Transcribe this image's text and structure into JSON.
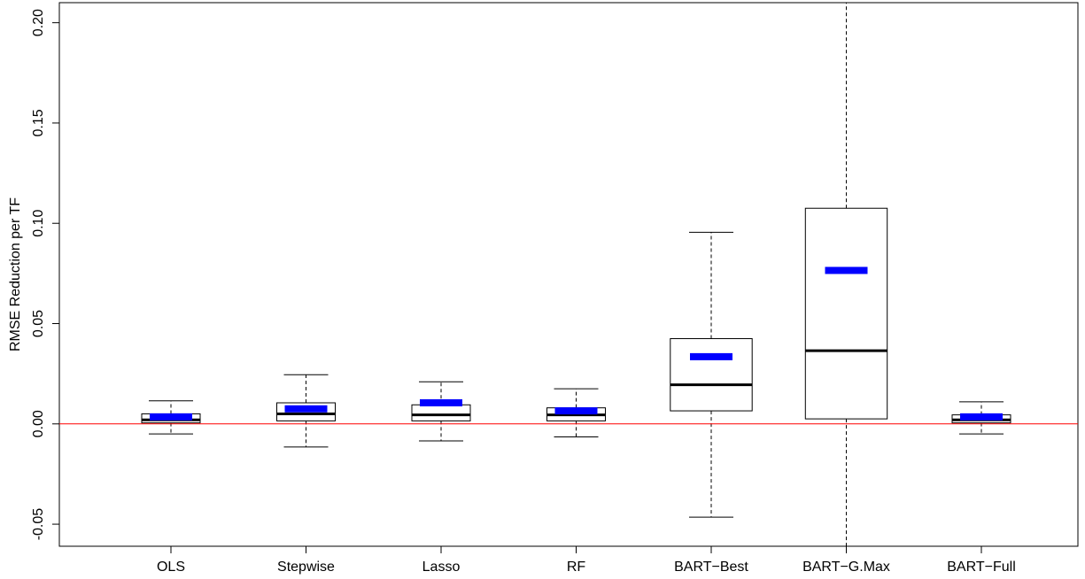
{
  "chart_data": {
    "type": "box",
    "title": "",
    "xlabel": "",
    "ylabel": "RMSE Reduction per TF",
    "ylim": [
      -0.061,
      0.21
    ],
    "yticks": [
      -0.05,
      0.0,
      0.05,
      0.1,
      0.15,
      0.2
    ],
    "ytick_labels": [
      "-0.05",
      "0.00",
      "0.05",
      "0.10",
      "0.15",
      "0.20"
    ],
    "categories": [
      "OLS",
      "Stepwise",
      "Lasso",
      "RF",
      "BART−Best",
      "BART−G.Max",
      "BART−Full"
    ],
    "boxes": [
      {
        "label": "OLS",
        "whisker_low": -0.005,
        "q1": 0.0005,
        "median": 0.002,
        "q3": 0.005,
        "whisker_high": 0.0115,
        "mean": 0.0035,
        "whisker_high_open": false,
        "whisker_low_open": false
      },
      {
        "label": "Stepwise",
        "whisker_low": -0.0115,
        "q1": 0.0015,
        "median": 0.005,
        "q3": 0.0105,
        "whisker_high": 0.0245,
        "mean": 0.0075,
        "whisker_high_open": false,
        "whisker_low_open": false
      },
      {
        "label": "Lasso",
        "whisker_low": -0.0085,
        "q1": 0.0015,
        "median": 0.0045,
        "q3": 0.0095,
        "whisker_high": 0.021,
        "mean": 0.0105,
        "whisker_high_open": false,
        "whisker_low_open": false
      },
      {
        "label": "RF",
        "whisker_low": -0.0065,
        "q1": 0.0015,
        "median": 0.0045,
        "q3": 0.008,
        "whisker_high": 0.0175,
        "mean": 0.0065,
        "whisker_high_open": false,
        "whisker_low_open": false
      },
      {
        "label": "BART−Best",
        "whisker_low": -0.0465,
        "q1": 0.0065,
        "median": 0.0195,
        "q3": 0.0425,
        "whisker_high": 0.0955,
        "mean": 0.0335,
        "whisker_high_open": false,
        "whisker_low_open": false
      },
      {
        "label": "BART−G.Max",
        "whisker_low": -0.061,
        "q1": 0.0025,
        "median": 0.0365,
        "q3": 0.1075,
        "whisker_high": 0.21,
        "mean": 0.0765,
        "whisker_high_open": true,
        "whisker_low_open": true
      },
      {
        "label": "BART−Full",
        "whisker_low": -0.005,
        "q1": 0.0005,
        "median": 0.002,
        "q3": 0.0045,
        "whisker_high": 0.011,
        "mean": 0.0035,
        "whisker_high_open": false,
        "whisker_low_open": false
      }
    ],
    "reference_line": {
      "y": 0.0,
      "color": "#ff0000"
    },
    "colors": {
      "mean_marker": "#0000ff",
      "median": "#000000",
      "box_border": "#000000"
    },
    "grid": false
  }
}
